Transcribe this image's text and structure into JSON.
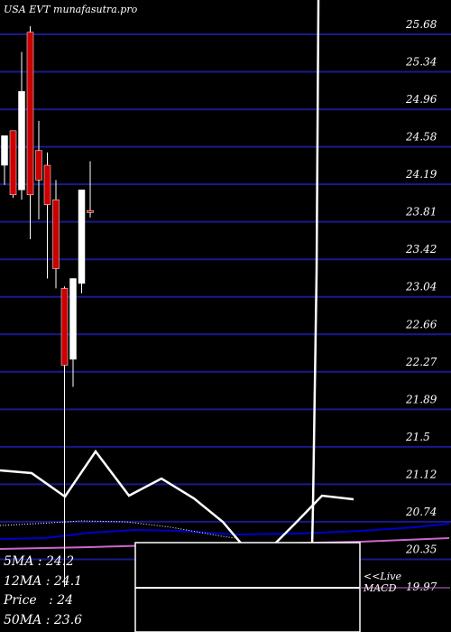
{
  "title": "USA EVT munafasutra.pro",
  "chart_data": {
    "type": "candlestick",
    "ymin": 19.97,
    "ymax": 25.68,
    "yticks": [
      "25.68",
      "25.34",
      "24.96",
      "24.58",
      "24.19",
      "23.81",
      "23.42",
      "23.04",
      "22.66",
      "22.27",
      "21.89",
      "21.5",
      "21.12",
      "20.74",
      "20.35",
      "19.97"
    ],
    "candles": [
      {
        "o": 24.25,
        "h": 24.5,
        "l": 24.05,
        "c": 24.55
      },
      {
        "o": 24.6,
        "h": 24.6,
        "l": 23.92,
        "c": 23.95
      },
      {
        "o": 24.0,
        "h": 25.4,
        "l": 23.9,
        "c": 25.0
      },
      {
        "o": 25.6,
        "h": 25.66,
        "l": 23.5,
        "c": 23.95
      },
      {
        "o": 24.4,
        "h": 24.7,
        "l": 23.7,
        "c": 24.1
      },
      {
        "o": 24.25,
        "h": 24.38,
        "l": 23.1,
        "c": 23.85
      },
      {
        "o": 23.9,
        "h": 24.1,
        "l": 23.0,
        "c": 23.2
      },
      {
        "o": 23.0,
        "h": 23.02,
        "l": 19.97,
        "c": 22.22
      },
      {
        "o": 22.28,
        "h": 23.05,
        "l": 22.0,
        "c": 23.1
      },
      {
        "o": 23.05,
        "h": 24.0,
        "l": 22.95,
        "c": 24.0
      },
      {
        "o": 23.79,
        "h": 24.29,
        "l": 23.72,
        "c": 23.77
      }
    ],
    "lines": {
      "price_line": [
        {
          "x": 0,
          "y": 521
        },
        {
          "x": 35,
          "y": 524
        },
        {
          "x": 72,
          "y": 550
        },
        {
          "x": 106,
          "y": 500
        },
        {
          "x": 143,
          "y": 549
        },
        {
          "x": 179,
          "y": 530
        },
        {
          "x": 215,
          "y": 552
        },
        {
          "x": 247,
          "y": 578
        },
        {
          "x": 270,
          "y": 605
        },
        {
          "x": 302,
          "y": 605
        },
        {
          "x": 327,
          "y": 580
        },
        {
          "x": 357,
          "y": 549
        },
        {
          "x": 392,
          "y": 553
        }
      ],
      "ma_dotted": [
        {
          "x": 0,
          "y": 582
        },
        {
          "x": 40,
          "y": 580
        },
        {
          "x": 90,
          "y": 577
        },
        {
          "x": 140,
          "y": 578
        },
        {
          "x": 190,
          "y": 584
        },
        {
          "x": 240,
          "y": 593
        },
        {
          "x": 260,
          "y": 596
        }
      ],
      "ma_blue": [
        {
          "x": 0,
          "y": 597
        },
        {
          "x": 50,
          "y": 596
        },
        {
          "x": 100,
          "y": 590
        },
        {
          "x": 150,
          "y": 587
        },
        {
          "x": 200,
          "y": 588
        },
        {
          "x": 260,
          "y": 592
        },
        {
          "x": 330,
          "y": 591
        },
        {
          "x": 400,
          "y": 588
        },
        {
          "x": 460,
          "y": 584
        },
        {
          "x": 498,
          "y": 580
        }
      ],
      "ma_pink": [
        {
          "x": 0,
          "y": 608
        },
        {
          "x": 100,
          "y": 606
        },
        {
          "x": 200,
          "y": 603
        },
        {
          "x": 300,
          "y": 602
        },
        {
          "x": 400,
          "y": 600
        },
        {
          "x": 498,
          "y": 596
        }
      ],
      "vertical_spike": [
        {
          "x": 345,
          "y": 651
        },
        {
          "x": 347,
          "y": 560
        },
        {
          "x": 351,
          "y": 300
        },
        {
          "x": 353,
          "y": 0
        }
      ]
    }
  },
  "ma_panel": {
    "ma5": "5MA : 24.2",
    "ma12": "12MA : 24.1",
    "price": "Price   : 24",
    "ma50": "50MA : 23.6"
  },
  "macd": {
    "live": "<<Live",
    "label": "MACD"
  },
  "colors": {
    "background": "#000000",
    "grid": "#1a1a8c",
    "up_candle": "#ffffff",
    "down_candle": "#cc0000",
    "ma_blue": "#0000cc",
    "ma_pink": "#cc66cc",
    "text": "#ffffff"
  }
}
